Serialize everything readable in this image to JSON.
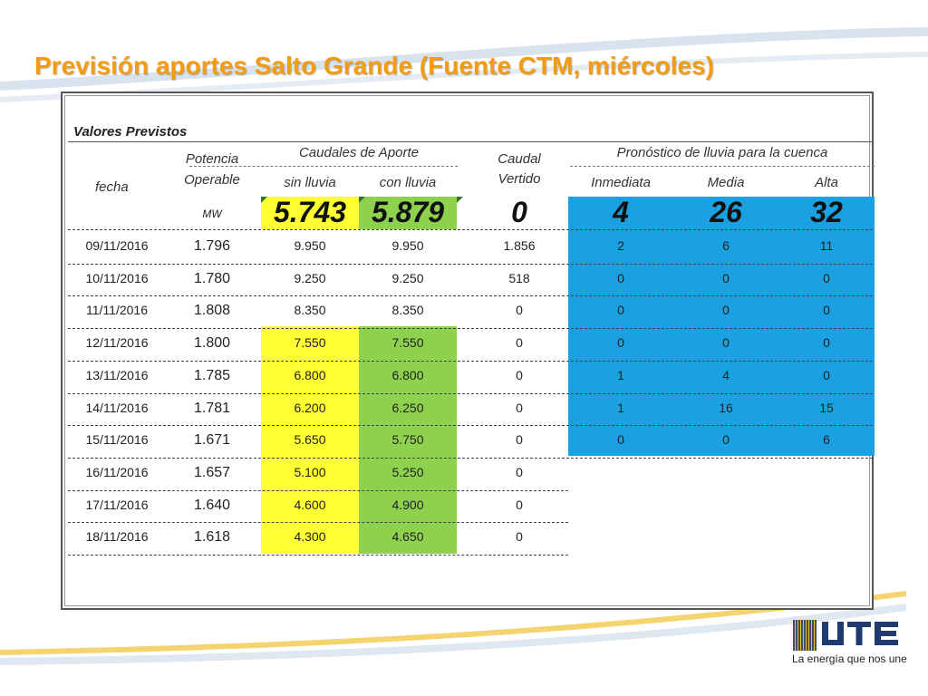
{
  "title": "Previsión aportes Salto Grande (Fuente CTM, miércoles)",
  "section_label": "Valores Previstos",
  "headers": {
    "fecha": "fecha",
    "potencia_line1": "Potencia",
    "potencia_line2": "Operable",
    "caudales_group": "Caudales de Aporte",
    "sin_lluvia": "sin lluvia",
    "con_lluvia": "con lluvia",
    "caudal_line1": "Caudal",
    "caudal_line2": "Vertido",
    "pronostico_group": "Pronóstico de lluvia para la cuenca",
    "inmediata": "Inmediata",
    "media": "Media",
    "alta": "Alta"
  },
  "totals": {
    "unit": "MW",
    "sin_lluvia": "5.743",
    "con_lluvia": "5.879",
    "vertido": "0",
    "inmediata": "4",
    "media": "26",
    "alta": "32"
  },
  "rows": [
    {
      "fecha": "09/11/2016",
      "potencia": "1.796",
      "sin": "9.950",
      "con": "9.950",
      "vertido": "1.856",
      "inm": "2",
      "med": "6",
      "alt": "11"
    },
    {
      "fecha": "10/11/2016",
      "potencia": "1.780",
      "sin": "9.250",
      "con": "9.250",
      "vertido": "518",
      "inm": "0",
      "med": "0",
      "alt": "0"
    },
    {
      "fecha": "11/11/2016",
      "potencia": "1.808",
      "sin": "8.350",
      "con": "8.350",
      "vertido": "0",
      "inm": "0",
      "med": "0",
      "alt": "0"
    },
    {
      "fecha": "12/11/2016",
      "potencia": "1.800",
      "sin": "7.550",
      "con": "7.550",
      "vertido": "0",
      "inm": "0",
      "med": "0",
      "alt": "0"
    },
    {
      "fecha": "13/11/2016",
      "potencia": "1.785",
      "sin": "6.800",
      "con": "6.800",
      "vertido": "0",
      "inm": "1",
      "med": "4",
      "alt": "0"
    },
    {
      "fecha": "14/11/2016",
      "potencia": "1.781",
      "sin": "6.200",
      "con": "6.250",
      "vertido": "0",
      "inm": "1",
      "med": "16",
      "alt": "15"
    },
    {
      "fecha": "15/11/2016",
      "potencia": "1.671",
      "sin": "5.650",
      "con": "5.750",
      "vertido": "0",
      "inm": "0",
      "med": "0",
      "alt": "6"
    },
    {
      "fecha": "16/11/2016",
      "potencia": "1.657",
      "sin": "5.100",
      "con": "5.250",
      "vertido": "0"
    },
    {
      "fecha": "17/11/2016",
      "potencia": "1.640",
      "sin": "4.600",
      "con": "4.900",
      "vertido": "0"
    },
    {
      "fecha": "18/11/2016",
      "potencia": "1.618",
      "sin": "4.300",
      "con": "4.650",
      "vertido": "0"
    }
  ],
  "logo": {
    "text": "UTE",
    "tagline": "La energía que nos une"
  },
  "colors": {
    "title": "#f39c12",
    "yellow": "#ffff33",
    "green": "#8ed14e",
    "blue": "#1ba1e2"
  }
}
